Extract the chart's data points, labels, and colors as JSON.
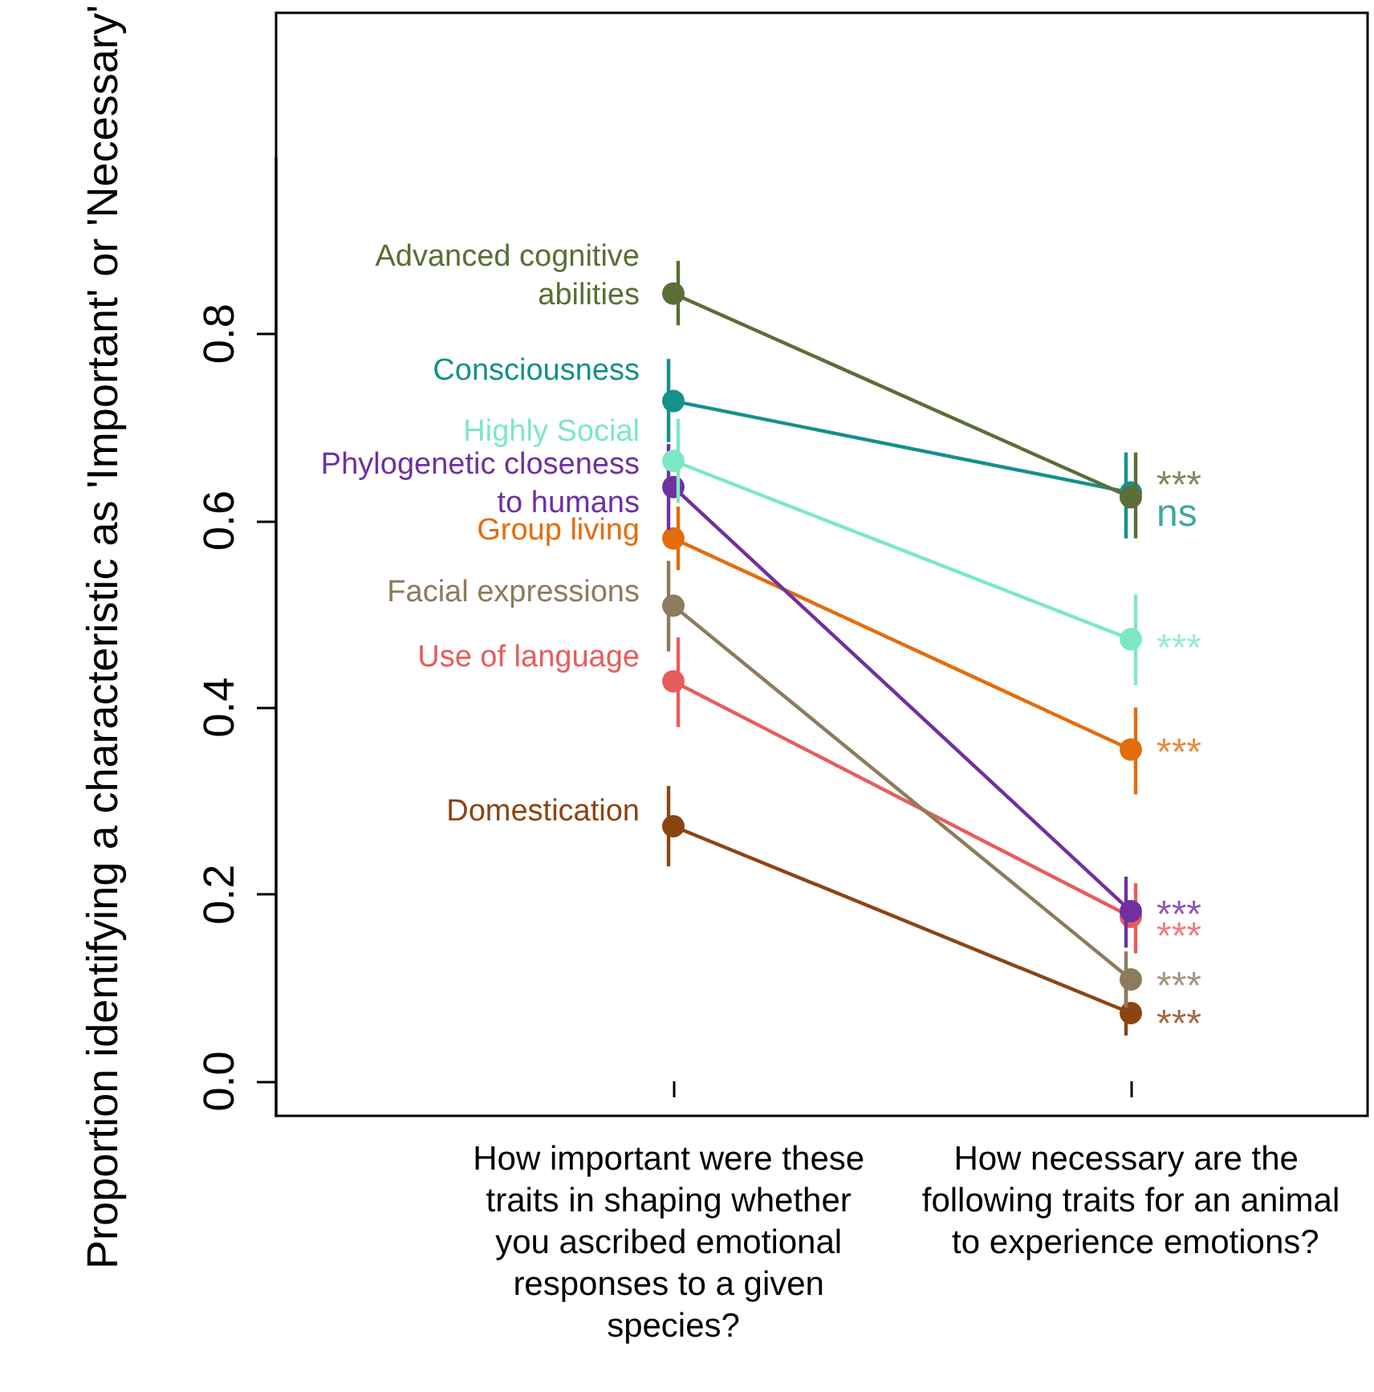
{
  "chart_data": {
    "type": "line",
    "ylabel": "Proportion identifying a characteristic as 'Important' or 'Necessary'",
    "categories": [
      "How important were these traits in shaping whether you ascribed emotional responses to a given species?",
      "How necessary are the following traits for an animal to experience emotions?"
    ],
    "ylim": [
      -0.037,
      0.988
    ],
    "yticks": [
      {
        "value": 0,
        "label": "0.0"
      },
      {
        "value": 0.2,
        "label": "0.2"
      },
      {
        "value": 0.4,
        "label": "0.4"
      },
      {
        "value": 0.6,
        "label": "0.6"
      },
      {
        "value": 0.8,
        "label": "0.8"
      }
    ],
    "marker": "circle",
    "grid": false,
    "legend": false,
    "series": [
      {
        "name": "Advanced cognitive\nabilities",
        "color": "#5a6e35",
        "values": [
          0.843,
          0.625
        ],
        "errors": [
          [
            0.809,
            0.878
          ],
          [
            0.581,
            0.673
          ]
        ]
      },
      {
        "name": "Consciousness",
        "color": "#13918a",
        "values": [
          0.728,
          0.63
        ],
        "errors": [
          [
            0.684,
            0.773
          ],
          [
            0.581,
            0.673
          ]
        ]
      },
      {
        "name": "Highly Social",
        "color": "#7de8c3",
        "values": [
          0.664,
          0.473
        ],
        "errors": [
          [
            0.619,
            0.709
          ],
          [
            0.424,
            0.521
          ]
        ]
      },
      {
        "name": "Phylogenetic closeness\nto humans",
        "color": "#7030a0",
        "values": [
          0.636,
          0.182
        ],
        "errors": [
          [
            0.59,
            0.682
          ],
          [
            0.143,
            0.219
          ]
        ]
      },
      {
        "name": "Group living",
        "color": "#e46c0a",
        "values": [
          0.581,
          0.355
        ],
        "errors": [
          [
            0.547,
            0.615
          ],
          [
            0.307,
            0.4
          ]
        ]
      },
      {
        "name": "Facial expressions",
        "color": "#8c7b5c",
        "values": [
          0.509,
          0.109
        ],
        "errors": [
          [
            0.46,
            0.557
          ],
          [
            0.079,
            0.139
          ]
        ]
      },
      {
        "name": "Use of language",
        "color": "#e85c5c",
        "values": [
          0.428,
          0.176
        ],
        "errors": [
          [
            0.379,
            0.475
          ],
          [
            0.137,
            0.212
          ]
        ]
      },
      {
        "name": "Domestication",
        "color": "#8b4513",
        "values": [
          0.273,
          0.073
        ],
        "errors": [
          [
            0.23,
            0.316
          ],
          [
            0.049,
            0.099
          ]
        ]
      }
    ],
    "annotations": [
      {
        "text": "***",
        "x": "How necessary are the following traits for an animal to experience emotions?",
        "y": 0.637
      },
      {
        "text": "ns",
        "x": "How necessary are the following traits for an animal to experience emotions?",
        "y": 0.607
      },
      {
        "text": "***",
        "x": "How necessary are the following traits for an animal to experience emotions?",
        "y": 0.463
      },
      {
        "text": "***",
        "x": "How necessary are the following traits for an animal to experience emotions?",
        "y": 0.178
      },
      {
        "text": "***",
        "x": "How necessary are the following traits for an animal to experience emotions?",
        "y": 0.351
      },
      {
        "text": "***",
        "x": "How necessary are the following traits for an animal to experience emotions?",
        "y": 0.101
      },
      {
        "text": "***",
        "x": "How necessary are the following traits for an animal to experience emotions?",
        "y": 0.155
      },
      {
        "text": "***",
        "x": "How necessary are the following traits for an animal to experience emotions?",
        "y": 0.061
      }
    ]
  }
}
